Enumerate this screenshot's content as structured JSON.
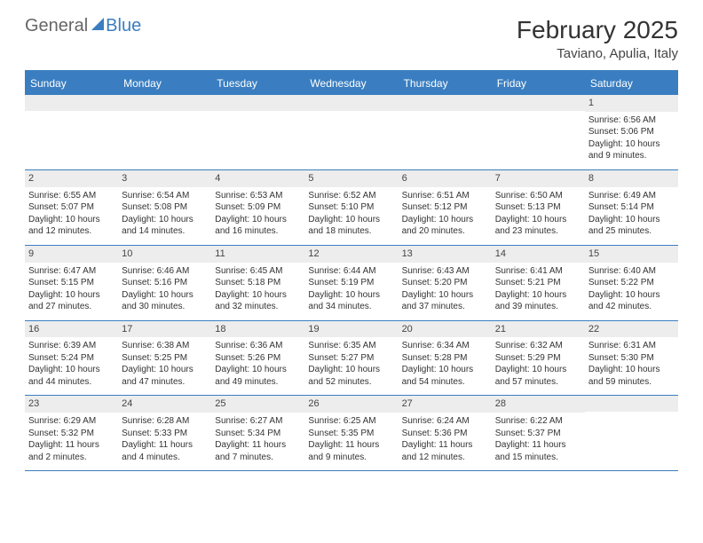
{
  "logo": {
    "part1": "General",
    "part2": "Blue"
  },
  "header": {
    "title": "February 2025",
    "location": "Taviano, Apulia, Italy"
  },
  "colors": {
    "accent": "#3a7ec1",
    "band": "#ededed",
    "text": "#333333",
    "bg": "#ffffff"
  },
  "dayNames": [
    "Sunday",
    "Monday",
    "Tuesday",
    "Wednesday",
    "Thursday",
    "Friday",
    "Saturday"
  ],
  "startOffset": 6,
  "days": [
    {
      "n": 1,
      "sunrise": "6:56 AM",
      "sunset": "5:06 PM",
      "daylight": "10 hours and 9 minutes."
    },
    {
      "n": 2,
      "sunrise": "6:55 AM",
      "sunset": "5:07 PM",
      "daylight": "10 hours and 12 minutes."
    },
    {
      "n": 3,
      "sunrise": "6:54 AM",
      "sunset": "5:08 PM",
      "daylight": "10 hours and 14 minutes."
    },
    {
      "n": 4,
      "sunrise": "6:53 AM",
      "sunset": "5:09 PM",
      "daylight": "10 hours and 16 minutes."
    },
    {
      "n": 5,
      "sunrise": "6:52 AM",
      "sunset": "5:10 PM",
      "daylight": "10 hours and 18 minutes."
    },
    {
      "n": 6,
      "sunrise": "6:51 AM",
      "sunset": "5:12 PM",
      "daylight": "10 hours and 20 minutes."
    },
    {
      "n": 7,
      "sunrise": "6:50 AM",
      "sunset": "5:13 PM",
      "daylight": "10 hours and 23 minutes."
    },
    {
      "n": 8,
      "sunrise": "6:49 AM",
      "sunset": "5:14 PM",
      "daylight": "10 hours and 25 minutes."
    },
    {
      "n": 9,
      "sunrise": "6:47 AM",
      "sunset": "5:15 PM",
      "daylight": "10 hours and 27 minutes."
    },
    {
      "n": 10,
      "sunrise": "6:46 AM",
      "sunset": "5:16 PM",
      "daylight": "10 hours and 30 minutes."
    },
    {
      "n": 11,
      "sunrise": "6:45 AM",
      "sunset": "5:18 PM",
      "daylight": "10 hours and 32 minutes."
    },
    {
      "n": 12,
      "sunrise": "6:44 AM",
      "sunset": "5:19 PM",
      "daylight": "10 hours and 34 minutes."
    },
    {
      "n": 13,
      "sunrise": "6:43 AM",
      "sunset": "5:20 PM",
      "daylight": "10 hours and 37 minutes."
    },
    {
      "n": 14,
      "sunrise": "6:41 AM",
      "sunset": "5:21 PM",
      "daylight": "10 hours and 39 minutes."
    },
    {
      "n": 15,
      "sunrise": "6:40 AM",
      "sunset": "5:22 PM",
      "daylight": "10 hours and 42 minutes."
    },
    {
      "n": 16,
      "sunrise": "6:39 AM",
      "sunset": "5:24 PM",
      "daylight": "10 hours and 44 minutes."
    },
    {
      "n": 17,
      "sunrise": "6:38 AM",
      "sunset": "5:25 PM",
      "daylight": "10 hours and 47 minutes."
    },
    {
      "n": 18,
      "sunrise": "6:36 AM",
      "sunset": "5:26 PM",
      "daylight": "10 hours and 49 minutes."
    },
    {
      "n": 19,
      "sunrise": "6:35 AM",
      "sunset": "5:27 PM",
      "daylight": "10 hours and 52 minutes."
    },
    {
      "n": 20,
      "sunrise": "6:34 AM",
      "sunset": "5:28 PM",
      "daylight": "10 hours and 54 minutes."
    },
    {
      "n": 21,
      "sunrise": "6:32 AM",
      "sunset": "5:29 PM",
      "daylight": "10 hours and 57 minutes."
    },
    {
      "n": 22,
      "sunrise": "6:31 AM",
      "sunset": "5:30 PM",
      "daylight": "10 hours and 59 minutes."
    },
    {
      "n": 23,
      "sunrise": "6:29 AM",
      "sunset": "5:32 PM",
      "daylight": "11 hours and 2 minutes."
    },
    {
      "n": 24,
      "sunrise": "6:28 AM",
      "sunset": "5:33 PM",
      "daylight": "11 hours and 4 minutes."
    },
    {
      "n": 25,
      "sunrise": "6:27 AM",
      "sunset": "5:34 PM",
      "daylight": "11 hours and 7 minutes."
    },
    {
      "n": 26,
      "sunrise": "6:25 AM",
      "sunset": "5:35 PM",
      "daylight": "11 hours and 9 minutes."
    },
    {
      "n": 27,
      "sunrise": "6:24 AM",
      "sunset": "5:36 PM",
      "daylight": "11 hours and 12 minutes."
    },
    {
      "n": 28,
      "sunrise": "6:22 AM",
      "sunset": "5:37 PM",
      "daylight": "11 hours and 15 minutes."
    }
  ],
  "labels": {
    "sunrise": "Sunrise:",
    "sunset": "Sunset:",
    "daylight": "Daylight:"
  }
}
